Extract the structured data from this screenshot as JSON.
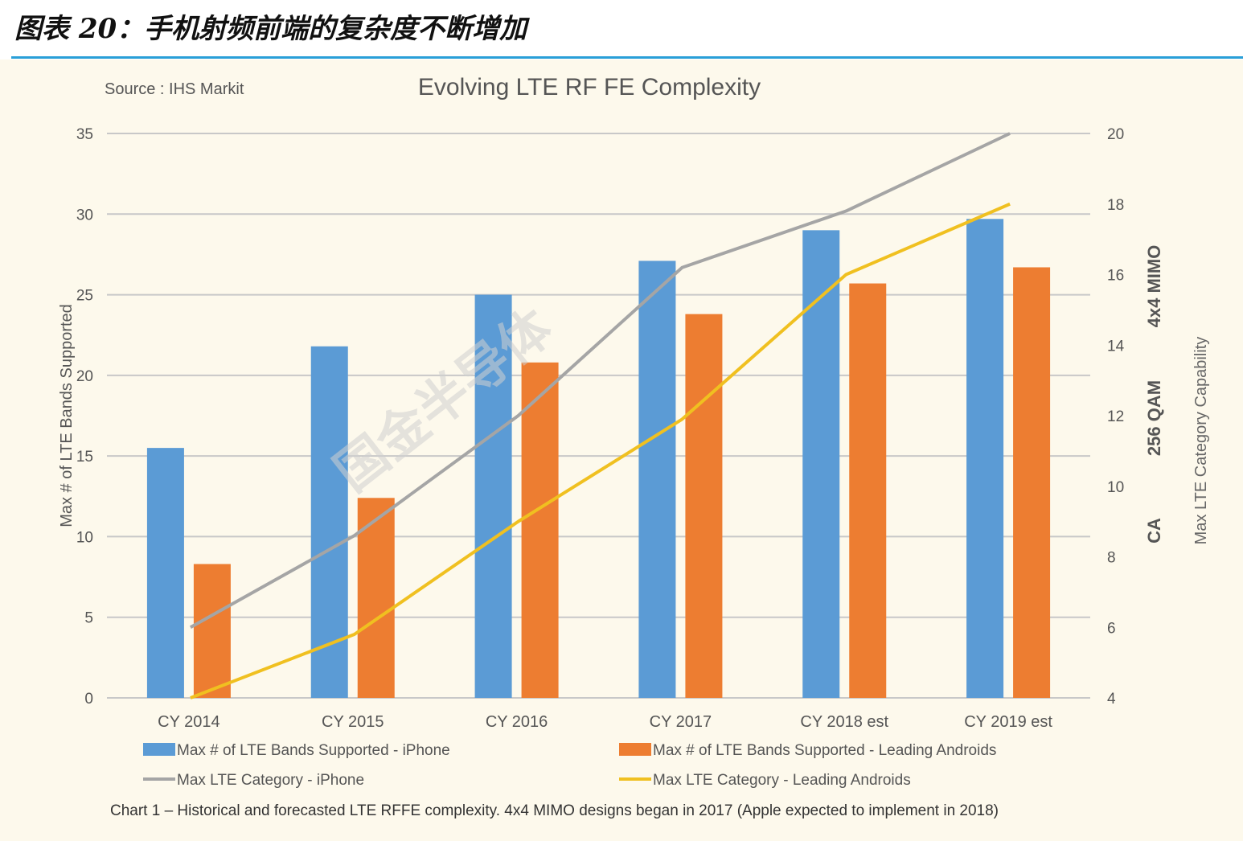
{
  "figure_title": "图表 20：手机射频前端的复杂度不断增加",
  "chart_data": {
    "type": "bar",
    "title": "Evolving LTE RF FE Complexity",
    "source": "Source : IHS Markit",
    "caption": "Chart 1 – Historical and forecasted LTE RFFE complexity. 4x4 MIMO designs began in 2017 (Apple expected to implement in 2018)",
    "watermark": "国金半导体",
    "categories": [
      "CY 2014",
      "CY 2015",
      "CY 2016",
      "CY 2017",
      "CY 2018 est",
      "CY 2019 est"
    ],
    "ylabel": "Max # of LTE Bands Supported",
    "ylim": [
      0,
      35
    ],
    "yticks": [
      0,
      5,
      10,
      15,
      20,
      25,
      30,
      35
    ],
    "y2label": "Max LTE Category Capability",
    "y2lim": [
      4,
      20
    ],
    "y2ticks": [
      4,
      6,
      8,
      10,
      12,
      14,
      16,
      18,
      20
    ],
    "y2_annotations": [
      "CA",
      "256 QAM",
      "4x4 MIMO"
    ],
    "grid": true,
    "legend_position": "bottom",
    "series": [
      {
        "name": "Max # of LTE Bands Supported - iPhone",
        "kind": "bar",
        "axis": "left",
        "color": "#5b9bd5",
        "values": [
          15.5,
          21.8,
          25,
          27.1,
          29,
          29.7
        ]
      },
      {
        "name": "Max # of LTE Bands Supported - Leading Androids",
        "kind": "bar",
        "axis": "left",
        "color": "#ed7d31",
        "values": [
          8.3,
          12.4,
          20.8,
          23.8,
          25.7,
          26.7
        ]
      },
      {
        "name": "Max LTE Category - iPhone",
        "kind": "line",
        "axis": "right",
        "color": "#a5a5a5",
        "values": [
          6,
          8.6,
          12,
          16.2,
          17.8,
          20
        ]
      },
      {
        "name": "Max LTE Category - Leading Androids",
        "kind": "line",
        "axis": "right",
        "color": "#f0c020",
        "values": [
          4,
          5.8,
          9,
          11.9,
          16,
          18
        ]
      }
    ]
  }
}
